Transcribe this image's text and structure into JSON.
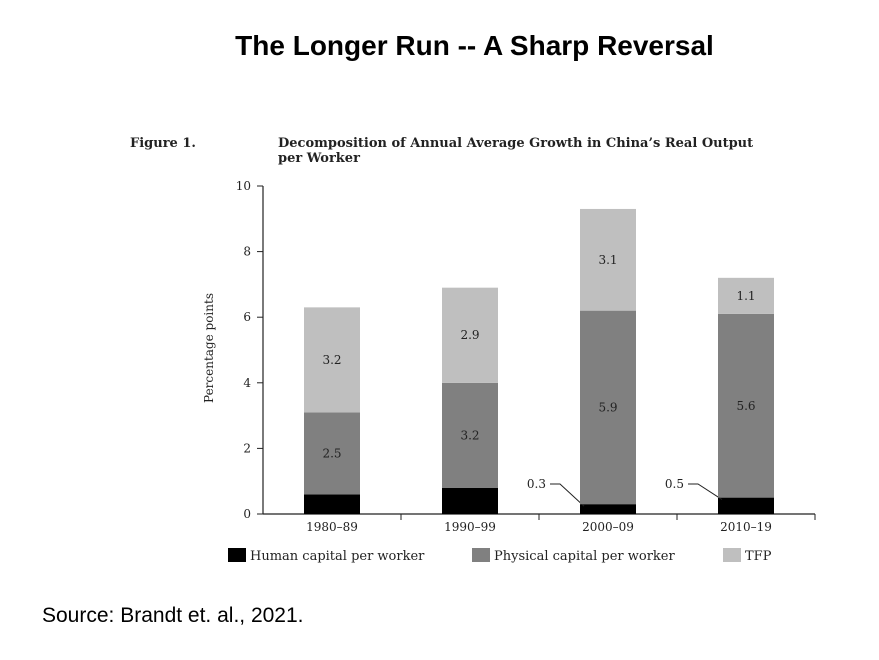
{
  "slide_title": "The Longer Run -- A Sharp Reversal",
  "source": "Source:  Brandt et. al., 2021.",
  "chart_data": {
    "type": "bar",
    "stacked": true,
    "figure_label": "Figure 1.",
    "title": "Decomposition of Annual Average Growth in China’s Real Output per Worker",
    "title_lines": [
      "Decomposition of Annual Average Growth in China’s Real Output",
      "per Worker"
    ],
    "ylabel": "Percentage points",
    "ylim": [
      0,
      10
    ],
    "yticks": [
      "0",
      "2",
      "4",
      "6",
      "8",
      "10"
    ],
    "categories": [
      "1980–89",
      "1990–99",
      "2000–09",
      "2010–19"
    ],
    "series": [
      {
        "name": "Human capital per worker",
        "color": "#000000",
        "values": [
          0.6,
          0.8,
          0.3,
          0.5
        ],
        "labels": [
          "",
          "",
          "0.3",
          "0.5"
        ]
      },
      {
        "name": "Physical capital per worker",
        "color": "#808080",
        "values": [
          2.5,
          3.2,
          5.9,
          5.6
        ],
        "labels": [
          "2.5",
          "3.2",
          "5.9",
          "5.6"
        ]
      },
      {
        "name": "TFP",
        "color": "#bfbfbf",
        "values": [
          3.2,
          2.9,
          3.1,
          1.1
        ],
        "labels": [
          "3.2",
          "2.9",
          "3.1",
          "1.1"
        ]
      }
    ],
    "legend_position": "bottom",
    "grid": false
  }
}
